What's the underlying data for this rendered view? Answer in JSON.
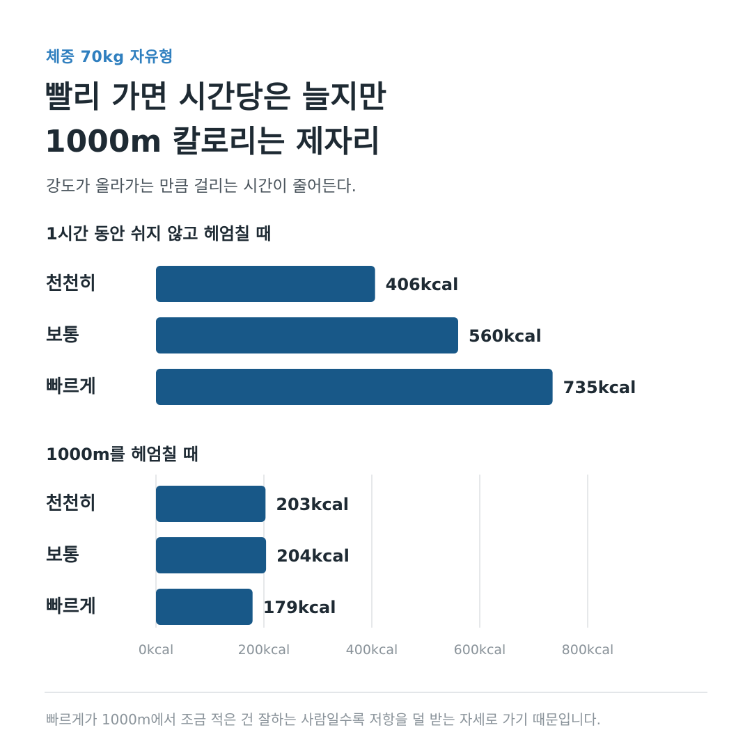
{
  "header": {
    "eyebrow": "체중 70kg 자유형",
    "title_line1": "빨리 가면 시간당은 늘지만",
    "title_line2": "1000m 칼로리는 제자리",
    "subtitle": "강도가 올라가는 만큼 걸리는 시간이 줄어든다."
  },
  "chart_data": [
    {
      "type": "bar",
      "orientation": "horizontal",
      "title": "1시간 동안 쉬지 않고 헤엄칠 때",
      "categories": [
        "천천히",
        "보통",
        "빠르게"
      ],
      "values": [
        406,
        560,
        735
      ],
      "value_labels": [
        "406kcal",
        "560kcal",
        "735kcal"
      ],
      "unit": "kcal",
      "xlim": [
        0,
        800
      ],
      "bar_color": "#185888"
    },
    {
      "type": "bar",
      "orientation": "horizontal",
      "title": "1000m를 헤엄칠 때",
      "categories": [
        "천천히",
        "보통",
        "빠르게"
      ],
      "values": [
        203,
        204,
        179
      ],
      "value_labels": [
        "203kcal",
        "204kcal",
        "179kcal"
      ],
      "unit": "kcal",
      "xlim": [
        0,
        800
      ],
      "grid": true,
      "x_ticks": [
        "0kcal",
        "200kcal",
        "400kcal",
        "600kcal",
        "800kcal"
      ],
      "bar_color": "#185888"
    }
  ],
  "footnote": "빠르게가 1000m에서 조금 적은 건 잘하는 사람일수록 저항을 덜 받는 자세로 가기 때문입니다."
}
